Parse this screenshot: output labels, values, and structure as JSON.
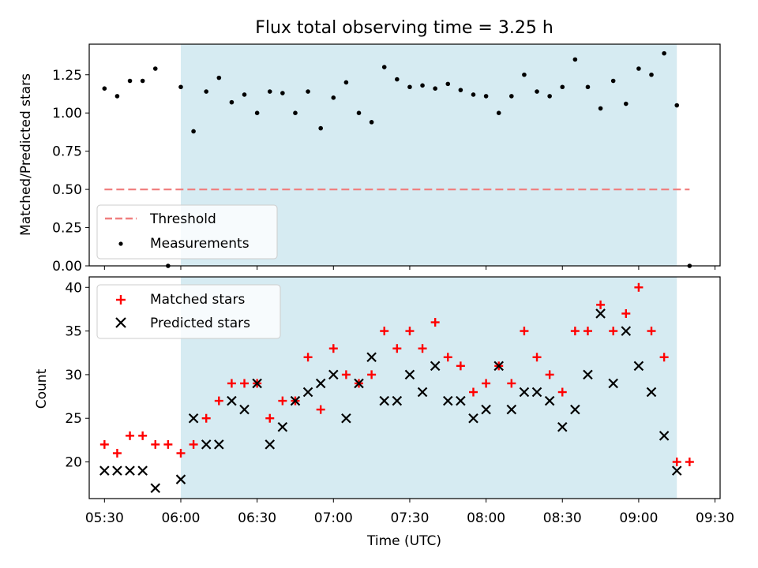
{
  "chart_data": [
    {
      "type": "scatter",
      "title": "Flux total observing time = 3.25 h",
      "xlabel": "",
      "ylabel": "Matched/Predicted stars",
      "x_is_time": true,
      "xlim": [
        "05:24",
        "09:32"
      ],
      "ylim": [
        0,
        1.45
      ],
      "yticks": [
        "0.00",
        "0.25",
        "0.50",
        "0.75",
        "1.00",
        "1.25"
      ],
      "shaded_interval": [
        "06:00",
        "09:15"
      ],
      "threshold": {
        "name": "Threshold",
        "y": 0.5,
        "x_range": [
          "05:30",
          "09:20"
        ],
        "style": "dashed"
      },
      "series": [
        {
          "name": "Measurements",
          "marker": "dot",
          "points": [
            [
              "05:30",
              1.16
            ],
            [
              "05:35",
              1.11
            ],
            [
              "05:40",
              1.21
            ],
            [
              "05:45",
              1.21
            ],
            [
              "05:50",
              1.29
            ],
            [
              "05:55",
              0.0
            ],
            [
              "06:00",
              1.17
            ],
            [
              "06:05",
              0.88
            ],
            [
              "06:10",
              1.14
            ],
            [
              "06:15",
              1.23
            ],
            [
              "06:20",
              1.07
            ],
            [
              "06:25",
              1.12
            ],
            [
              "06:30",
              1.0
            ],
            [
              "06:35",
              1.14
            ],
            [
              "06:40",
              1.13
            ],
            [
              "06:45",
              1.0
            ],
            [
              "06:50",
              1.14
            ],
            [
              "06:55",
              0.9
            ],
            [
              "07:00",
              1.1
            ],
            [
              "07:05",
              1.2
            ],
            [
              "07:10",
              1.0
            ],
            [
              "07:15",
              0.94
            ],
            [
              "07:20",
              1.3
            ],
            [
              "07:25",
              1.22
            ],
            [
              "07:30",
              1.17
            ],
            [
              "07:35",
              1.18
            ],
            [
              "07:40",
              1.16
            ],
            [
              "07:45",
              1.19
            ],
            [
              "07:50",
              1.15
            ],
            [
              "07:55",
              1.12
            ],
            [
              "08:00",
              1.11
            ],
            [
              "08:05",
              1.0
            ],
            [
              "08:10",
              1.11
            ],
            [
              "08:15",
              1.25
            ],
            [
              "08:20",
              1.14
            ],
            [
              "08:25",
              1.11
            ],
            [
              "08:30",
              1.17
            ],
            [
              "08:35",
              1.35
            ],
            [
              "08:40",
              1.17
            ],
            [
              "08:45",
              1.03
            ],
            [
              "08:50",
              1.21
            ],
            [
              "08:55",
              1.06
            ],
            [
              "09:00",
              1.29
            ],
            [
              "09:05",
              1.25
            ],
            [
              "09:10",
              1.39
            ],
            [
              "09:15",
              1.05
            ],
            [
              "09:20",
              0.0
            ]
          ]
        }
      ],
      "legend": {
        "position": "lower-left",
        "entries": [
          "Threshold",
          "Measurements"
        ]
      },
      "colors": {
        "threshold": "#f08080",
        "measurements": "#000000",
        "shade": "#add8e6"
      }
    },
    {
      "type": "scatter",
      "title": "",
      "xlabel": "Time (UTC)",
      "ylabel": "Count",
      "x_is_time": true,
      "xlim": [
        "05:24",
        "09:32"
      ],
      "ylim": [
        15.8,
        41.2
      ],
      "yticks": [
        "20",
        "25",
        "30",
        "35",
        "40"
      ],
      "xticks": [
        "05:30",
        "06:00",
        "06:30",
        "07:00",
        "07:30",
        "08:00",
        "08:30",
        "09:00",
        "09:30"
      ],
      "shaded_interval": [
        "06:00",
        "09:15"
      ],
      "series": [
        {
          "name": "Matched stars",
          "marker": "plus",
          "points": [
            [
              "05:30",
              22
            ],
            [
              "05:35",
              21
            ],
            [
              "05:40",
              23
            ],
            [
              "05:45",
              23
            ],
            [
              "05:50",
              22
            ],
            [
              "05:55",
              22
            ],
            [
              "06:00",
              21
            ],
            [
              "06:05",
              22
            ],
            [
              "06:10",
              25
            ],
            [
              "06:15",
              27
            ],
            [
              "06:20",
              29
            ],
            [
              "06:25",
              29
            ],
            [
              "06:30",
              29
            ],
            [
              "06:35",
              25
            ],
            [
              "06:40",
              27
            ],
            [
              "06:45",
              27
            ],
            [
              "06:50",
              32
            ],
            [
              "06:55",
              26
            ],
            [
              "07:00",
              33
            ],
            [
              "07:05",
              30
            ],
            [
              "07:10",
              29
            ],
            [
              "07:15",
              30
            ],
            [
              "07:20",
              35
            ],
            [
              "07:25",
              33
            ],
            [
              "07:30",
              35
            ],
            [
              "07:35",
              33
            ],
            [
              "07:40",
              36
            ],
            [
              "07:45",
              32
            ],
            [
              "07:50",
              31
            ],
            [
              "07:55",
              28
            ],
            [
              "08:00",
              29
            ],
            [
              "08:05",
              31
            ],
            [
              "08:10",
              29
            ],
            [
              "08:15",
              35
            ],
            [
              "08:20",
              32
            ],
            [
              "08:25",
              30
            ],
            [
              "08:30",
              28
            ],
            [
              "08:35",
              35
            ],
            [
              "08:40",
              35
            ],
            [
              "08:45",
              38
            ],
            [
              "08:50",
              35
            ],
            [
              "08:55",
              37
            ],
            [
              "09:00",
              40
            ],
            [
              "09:05",
              35
            ],
            [
              "09:10",
              32
            ],
            [
              "09:15",
              20
            ],
            [
              "09:20",
              20
            ]
          ]
        },
        {
          "name": "Predicted stars",
          "marker": "x",
          "points": [
            [
              "05:30",
              19
            ],
            [
              "05:35",
              19
            ],
            [
              "05:40",
              19
            ],
            [
              "05:45",
              19
            ],
            [
              "05:50",
              17
            ],
            [
              "06:00",
              18
            ],
            [
              "06:05",
              25
            ],
            [
              "06:10",
              22
            ],
            [
              "06:15",
              22
            ],
            [
              "06:20",
              27
            ],
            [
              "06:25",
              26
            ],
            [
              "06:30",
              29
            ],
            [
              "06:35",
              22
            ],
            [
              "06:40",
              24
            ],
            [
              "06:45",
              27
            ],
            [
              "06:50",
              28
            ],
            [
              "06:55",
              29
            ],
            [
              "07:00",
              30
            ],
            [
              "07:05",
              25
            ],
            [
              "07:10",
              29
            ],
            [
              "07:15",
              32
            ],
            [
              "07:20",
              27
            ],
            [
              "07:25",
              27
            ],
            [
              "07:30",
              30
            ],
            [
              "07:35",
              28
            ],
            [
              "07:40",
              31
            ],
            [
              "07:45",
              27
            ],
            [
              "07:50",
              27
            ],
            [
              "07:55",
              25
            ],
            [
              "08:00",
              26
            ],
            [
              "08:05",
              31
            ],
            [
              "08:10",
              26
            ],
            [
              "08:15",
              28
            ],
            [
              "08:20",
              28
            ],
            [
              "08:25",
              27
            ],
            [
              "08:30",
              24
            ],
            [
              "08:35",
              26
            ],
            [
              "08:40",
              30
            ],
            [
              "08:45",
              37
            ],
            [
              "08:50",
              29
            ],
            [
              "08:55",
              35
            ],
            [
              "09:00",
              31
            ],
            [
              "09:05",
              28
            ],
            [
              "09:10",
              23
            ],
            [
              "09:15",
              19
            ]
          ]
        }
      ],
      "legend": {
        "position": "upper-left",
        "entries": [
          "Matched stars",
          "Predicted stars"
        ]
      },
      "colors": {
        "matched": "#ff0000",
        "predicted": "#000000",
        "shade": "#add8e6"
      }
    }
  ]
}
